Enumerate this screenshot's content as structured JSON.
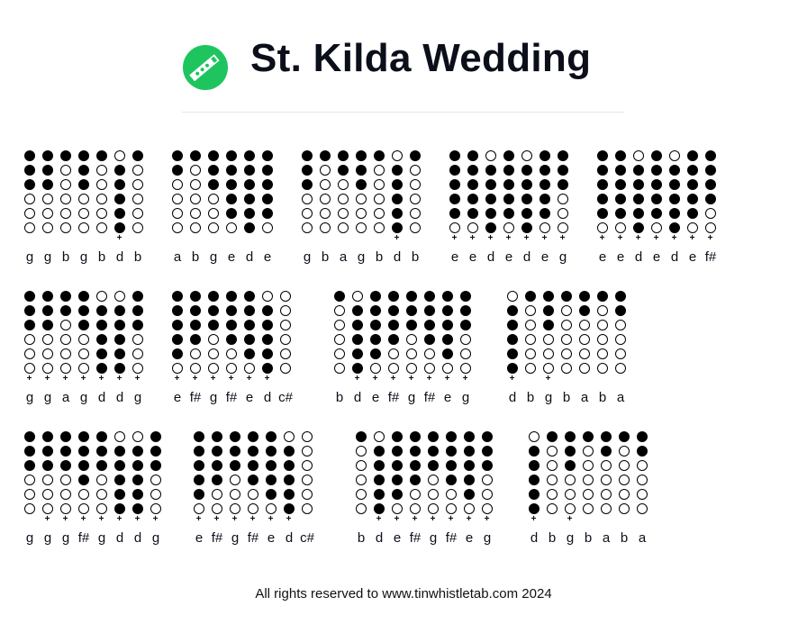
{
  "header": {
    "title": "St. Kilda Wedding",
    "logo_icon": "tin-whistle-icon",
    "logo_color": "#1ec55f"
  },
  "tab_rows": [
    [
      {
        "notes": [
          "g",
          "g",
          "b",
          "g",
          "b",
          "d",
          "b"
        ],
        "high": [
          0,
          0,
          0,
          0,
          0,
          1,
          0
        ]
      },
      {
        "notes": [
          "a",
          "b",
          "g",
          "e",
          "d",
          "e"
        ],
        "high": [
          0,
          0,
          0,
          0,
          0,
          0
        ]
      },
      {
        "notes": [
          "g",
          "b",
          "a",
          "g",
          "b",
          "d",
          "b"
        ],
        "high": [
          0,
          0,
          0,
          0,
          0,
          1,
          0
        ]
      },
      {
        "notes": [
          "e",
          "e",
          "d",
          "e",
          "d",
          "e",
          "g"
        ],
        "high": [
          1,
          1,
          1,
          1,
          1,
          1,
          1
        ]
      },
      {
        "notes": [
          "e",
          "e",
          "d",
          "e",
          "d",
          "e",
          "f#"
        ],
        "high": [
          1,
          1,
          1,
          1,
          1,
          1,
          1
        ]
      }
    ],
    [
      {
        "notes": [
          "g",
          "g",
          "a",
          "g",
          "d",
          "d",
          "g"
        ],
        "high": [
          1,
          1,
          1,
          1,
          1,
          1,
          1
        ]
      },
      {
        "notes": [
          "e",
          "f#",
          "g",
          "f#",
          "e",
          "d",
          "c#"
        ],
        "high": [
          1,
          1,
          1,
          1,
          1,
          1,
          0
        ]
      },
      {
        "notes": [
          "b",
          "d",
          "e",
          "f#",
          "g",
          "f#",
          "e",
          "g"
        ],
        "high": [
          0,
          1,
          1,
          1,
          1,
          1,
          1,
          1
        ]
      },
      {
        "notes": [
          "d",
          "b",
          "g",
          "b",
          "a",
          "b",
          "a"
        ],
        "high": [
          1,
          0,
          1,
          0,
          0,
          0,
          0
        ]
      }
    ],
    [
      {
        "notes": [
          "g",
          "g",
          "g",
          "f#",
          "g",
          "d",
          "d",
          "g"
        ],
        "high": [
          0,
          1,
          1,
          1,
          1,
          1,
          1,
          1
        ]
      },
      {
        "notes": [
          "e",
          "f#",
          "g",
          "f#",
          "e",
          "d",
          "c#"
        ],
        "high": [
          1,
          1,
          1,
          1,
          1,
          1,
          0
        ]
      },
      {
        "notes": [
          "b",
          "d",
          "e",
          "f#",
          "g",
          "f#",
          "e",
          "g"
        ],
        "high": [
          0,
          1,
          1,
          1,
          1,
          1,
          1,
          1
        ]
      },
      {
        "notes": [
          "d",
          "b",
          "g",
          "b",
          "a",
          "b",
          "a"
        ],
        "high": [
          1,
          0,
          1,
          0,
          0,
          0,
          0
        ]
      }
    ]
  ],
  "octave_mark": "+",
  "footer": {
    "text": "All rights reserved to www.tinwhistletab.com 2024"
  }
}
